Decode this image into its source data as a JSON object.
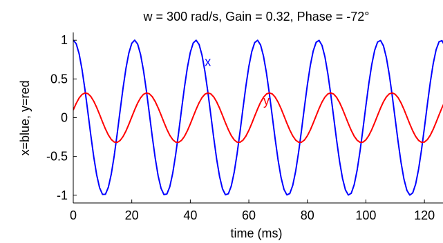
{
  "chart_data": {
    "type": "line",
    "title": "w = 300 rad/s, Gain = 0.32, Phase = -72°",
    "xlabel": "time (ms)",
    "ylabel": "x=blue, y=red",
    "xlim": [
      0,
      128
    ],
    "ylim": [
      -1.1,
      1.1
    ],
    "xticks": [
      0,
      20,
      40,
      60,
      80,
      100,
      120
    ],
    "yticks": [
      -1,
      -0.5,
      0,
      0.5,
      1
    ],
    "xtick_labels": [
      "0",
      "20",
      "40",
      "60",
      "80",
      "100",
      "120"
    ],
    "ytick_labels": [
      "-1",
      "-0.5",
      "0",
      "0.5",
      "1"
    ],
    "grid": false,
    "series": [
      {
        "name": "x",
        "color": "#0000ff",
        "amplitude": 1.0,
        "omega_rad_per_s": 300,
        "phase_deg": 0,
        "function": "cos",
        "sample_step_ms": 1
      },
      {
        "name": "y",
        "color": "#ff0000",
        "amplitude": 0.32,
        "omega_rad_per_s": 300,
        "phase_deg": -72,
        "function": "cos",
        "sample_step_ms": 1
      }
    ],
    "annotations": [
      {
        "text": "x",
        "x": 46,
        "y": 0.72,
        "color": "#0000ff"
      },
      {
        "text": "y",
        "x": 66,
        "y": 0.22,
        "color": "#ff0000"
      }
    ]
  }
}
